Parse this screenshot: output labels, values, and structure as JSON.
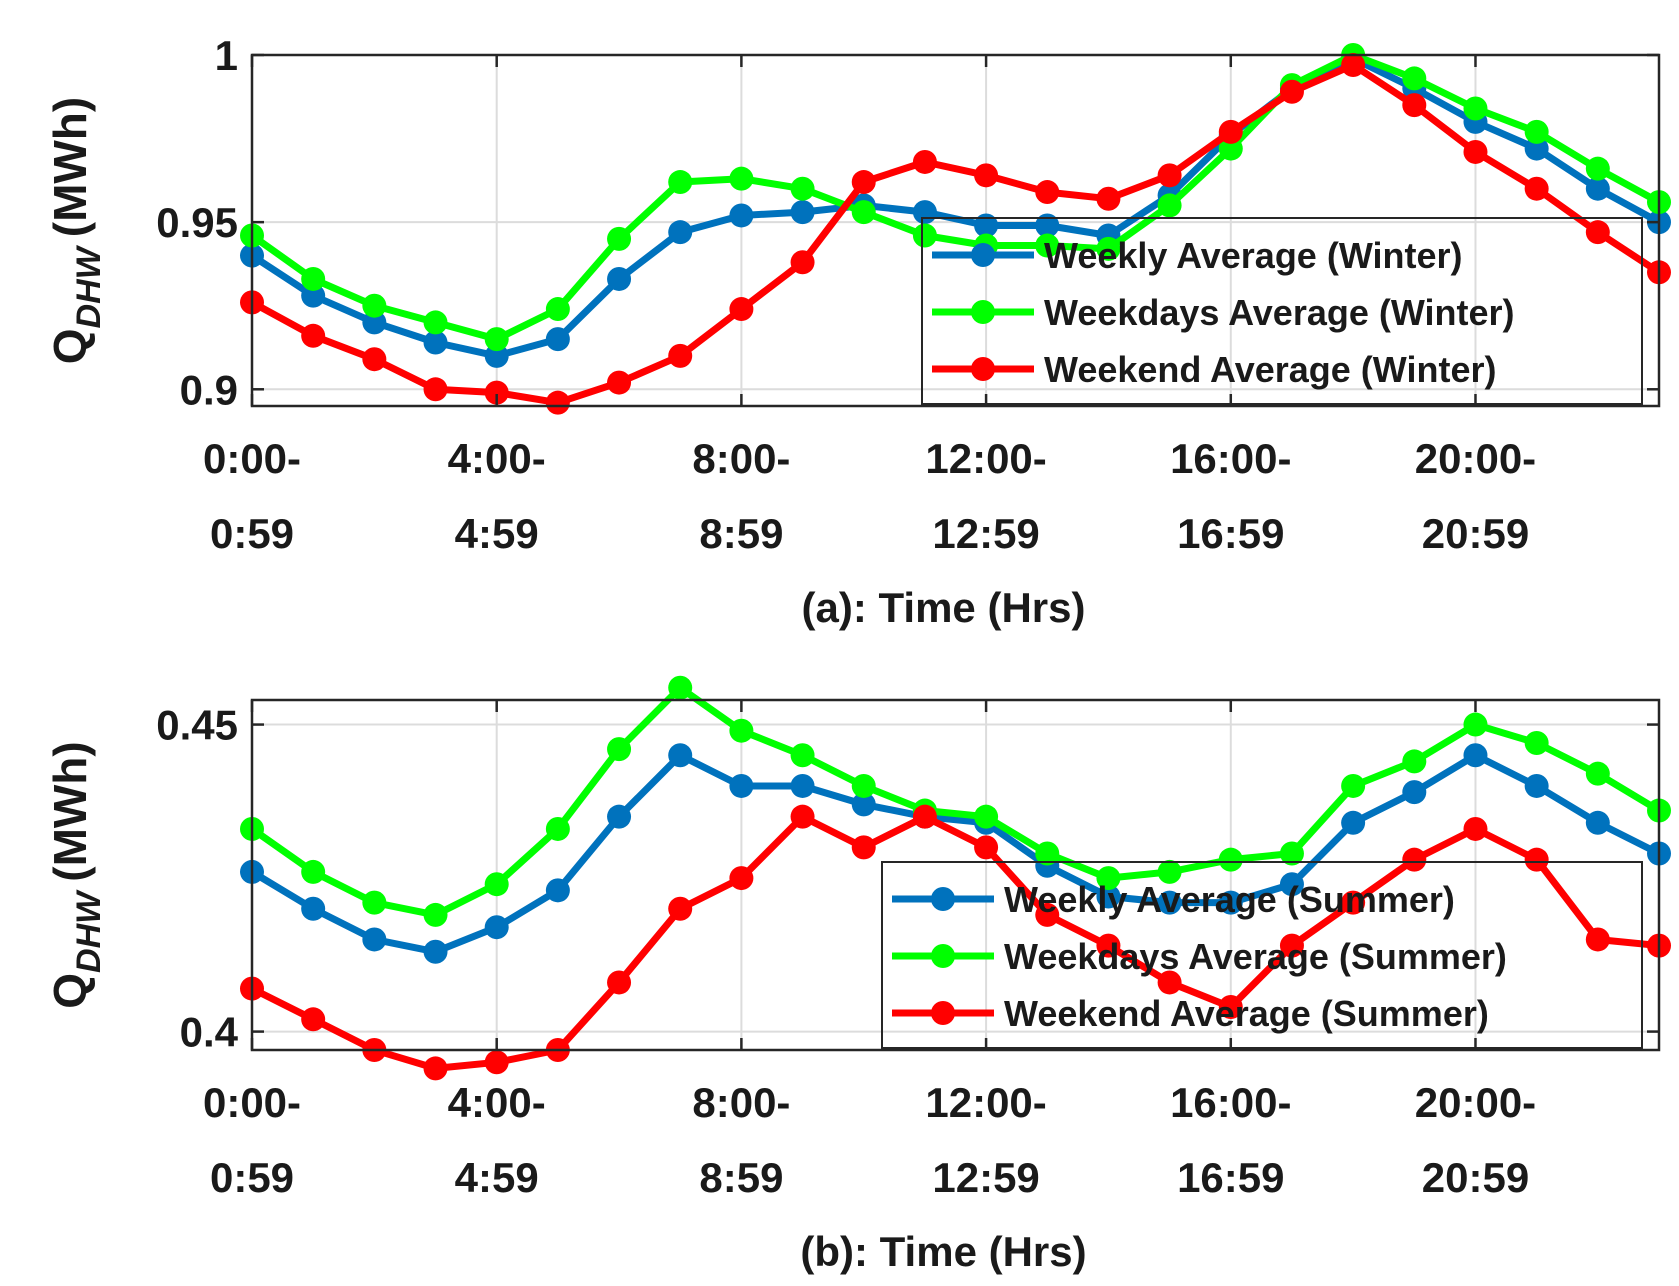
{
  "figure": {
    "layout": "two stacked line charts"
  },
  "chart_data": [
    {
      "id": "a",
      "type": "line",
      "title": "",
      "xlabel": "(a): Time (Hrs)",
      "ylabel_main": "Q",
      "ylabel_sub": "DHW",
      "ylabel_units": "(MWh)",
      "x": [
        0,
        1,
        2,
        3,
        4,
        5,
        6,
        7,
        8,
        9,
        10,
        11,
        12,
        13,
        14,
        15,
        16,
        17,
        18,
        19,
        20,
        21,
        22,
        23
      ],
      "xlim": [
        0,
        23
      ],
      "ylim": [
        0.895,
        1.0
      ],
      "grid": true,
      "x_ticks": [
        {
          "x": 0,
          "line1": "0:00-",
          "line2": "0:59"
        },
        {
          "x": 4,
          "line1": "4:00-",
          "line2": "4:59"
        },
        {
          "x": 8,
          "line1": "8:00-",
          "line2": "8:59"
        },
        {
          "x": 12,
          "line1": "12:00-",
          "line2": "12:59"
        },
        {
          "x": 16,
          "line1": "16:00-",
          "line2": "16:59"
        },
        {
          "x": 20,
          "line1": "20:00-",
          "line2": "20:59"
        }
      ],
      "y_ticks": [
        {
          "v": 0.9,
          "label": "0.9"
        },
        {
          "v": 0.95,
          "label": "0.95"
        },
        {
          "v": 1.0,
          "label": "1"
        }
      ],
      "legend_position": "lower-right",
      "series": [
        {
          "name": "Weekly Average (Winter)",
          "color": "#0072BD",
          "values": [
            0.94,
            0.928,
            0.92,
            0.914,
            0.91,
            0.915,
            0.933,
            0.947,
            0.952,
            0.953,
            0.955,
            0.953,
            0.949,
            0.949,
            0.946,
            0.958,
            0.976,
            0.99,
            0.999,
            0.99,
            0.98,
            0.972,
            0.96,
            0.95
          ]
        },
        {
          "name": "Weekdays Average (Winter)",
          "color": "#00FF00",
          "values": [
            0.946,
            0.933,
            0.925,
            0.92,
            0.915,
            0.924,
            0.945,
            0.962,
            0.963,
            0.96,
            0.953,
            0.946,
            0.943,
            0.943,
            0.942,
            0.955,
            0.972,
            0.991,
            1.0,
            0.993,
            0.984,
            0.977,
            0.966,
            0.956
          ]
        },
        {
          "name": "Weekend Average (Winter)",
          "color": "#FF0000",
          "values": [
            0.926,
            0.916,
            0.909,
            0.9,
            0.899,
            0.896,
            0.902,
            0.91,
            0.924,
            0.938,
            0.962,
            0.968,
            0.964,
            0.959,
            0.957,
            0.964,
            0.977,
            0.989,
            0.997,
            0.985,
            0.971,
            0.96,
            0.947,
            0.935
          ]
        }
      ]
    },
    {
      "id": "b",
      "type": "line",
      "title": "",
      "xlabel": "(b): Time (Hrs)",
      "ylabel_main": "Q",
      "ylabel_sub": "DHW",
      "ylabel_units": "(MWh)",
      "x": [
        0,
        1,
        2,
        3,
        4,
        5,
        6,
        7,
        8,
        9,
        10,
        11,
        12,
        13,
        14,
        15,
        16,
        17,
        18,
        19,
        20,
        21,
        22,
        23
      ],
      "xlim": [
        0,
        23
      ],
      "ylim": [
        0.397,
        0.454
      ],
      "grid": true,
      "x_ticks": [
        {
          "x": 0,
          "line1": "0:00-",
          "line2": "0:59"
        },
        {
          "x": 4,
          "line1": "4:00-",
          "line2": "4:59"
        },
        {
          "x": 8,
          "line1": "8:00-",
          "line2": "8:59"
        },
        {
          "x": 12,
          "line1": "12:00-",
          "line2": "12:59"
        },
        {
          "x": 16,
          "line1": "16:00-",
          "line2": "16:59"
        },
        {
          "x": 20,
          "line1": "20:00-",
          "line2": "20:59"
        }
      ],
      "y_ticks": [
        {
          "v": 0.4,
          "label": "0.4"
        },
        {
          "v": 0.45,
          "label": "0.45"
        }
      ],
      "legend_position": "lower-right",
      "series": [
        {
          "name": "Weekly Average (Summer)",
          "color": "#0072BD",
          "values": [
            0.426,
            0.42,
            0.415,
            0.413,
            0.417,
            0.423,
            0.435,
            0.445,
            0.44,
            0.44,
            0.437,
            0.435,
            0.434,
            0.427,
            0.422,
            0.421,
            0.421,
            0.424,
            0.434,
            0.439,
            0.445,
            0.44,
            0.434,
            0.429
          ]
        },
        {
          "name": "Weekdays Average (Summer)",
          "color": "#00FF00",
          "values": [
            0.433,
            0.426,
            0.421,
            0.419,
            0.424,
            0.433,
            0.446,
            0.456,
            0.449,
            0.445,
            0.44,
            0.436,
            0.435,
            0.429,
            0.425,
            0.426,
            0.428,
            0.429,
            0.44,
            0.444,
            0.45,
            0.447,
            0.442,
            0.436
          ]
        },
        {
          "name": "Weekend Average (Summer)",
          "color": "#FF0000",
          "values": [
            0.407,
            0.402,
            0.397,
            0.394,
            0.395,
            0.397,
            0.408,
            0.42,
            0.425,
            0.435,
            0.43,
            0.435,
            0.43,
            0.419,
            0.414,
            0.408,
            0.404,
            0.414,
            0.421,
            0.428,
            0.433,
            0.428,
            0.415,
            0.414
          ]
        }
      ]
    }
  ]
}
